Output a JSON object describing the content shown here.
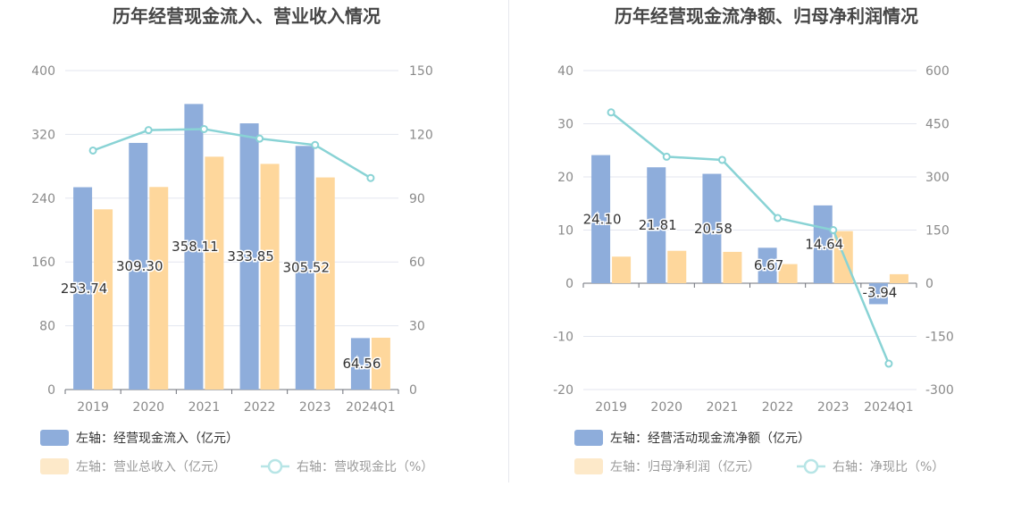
{
  "chart_data": [
    {
      "type": "bar",
      "title": "历年经营现金流入、营业收入情况",
      "categories": [
        "2019",
        "2020",
        "2021",
        "2022",
        "2023",
        "2024Q1"
      ],
      "y_left": {
        "min": 0,
        "max": 400,
        "ticks": [
          "0",
          "80",
          "160",
          "240",
          "320",
          "400"
        ]
      },
      "y_right": {
        "min": 0,
        "max": 150,
        "ticks": [
          "0",
          "30",
          "60",
          "90",
          "120",
          "150"
        ]
      },
      "series": [
        {
          "name": "左轴：经营现金流入（亿元）",
          "type": "bar",
          "axis": "left",
          "color": "#8eaddb",
          "values": [
            253.74,
            309.3,
            358.11,
            333.85,
            305.52,
            64.56
          ],
          "labels": [
            "253.74",
            "309.30",
            "358.11",
            "333.85",
            "305.52",
            "64.56"
          ]
        },
        {
          "name": "左轴：营业总收入（亿元）",
          "type": "bar",
          "axis": "left",
          "color": "#fed79c",
          "values": [
            226,
            254,
            292,
            283,
            266,
            65
          ]
        },
        {
          "name": "右轴：营收现金比（%）",
          "type": "line",
          "axis": "right",
          "color": "#89d3d5",
          "values": [
            112.4,
            122,
            122.5,
            118,
            115,
            99.5
          ]
        }
      ]
    },
    {
      "type": "bar",
      "title": "历年经营现金流净额、归母净利润情况",
      "categories": [
        "2019",
        "2020",
        "2021",
        "2022",
        "2023",
        "2024Q1"
      ],
      "y_left": {
        "min": -20,
        "max": 40,
        "ticks": [
          "-20",
          "-10",
          "0",
          "10",
          "20",
          "30",
          "40"
        ]
      },
      "y_right": {
        "min": -300,
        "max": 600,
        "ticks": [
          "-300",
          "-150",
          "0",
          "150",
          "300",
          "450",
          "600"
        ]
      },
      "series": [
        {
          "name": "左轴：经营活动现金流净额（亿元）",
          "type": "bar",
          "axis": "left",
          "color": "#8eaddb",
          "values": [
            24.1,
            21.81,
            20.58,
            6.67,
            14.64,
            -3.94
          ],
          "labels": [
            "24.10",
            "21.81",
            "20.58",
            "6.67",
            "14.64",
            "-3.94"
          ]
        },
        {
          "name": "左轴：归母净利润（亿元）",
          "type": "bar",
          "axis": "left",
          "color": "#fed79c",
          "values": [
            5.0,
            6.1,
            5.9,
            3.6,
            9.8,
            1.7
          ]
        },
        {
          "name": "右轴：净现比（%）",
          "type": "line",
          "axis": "right",
          "color": "#89d3d5",
          "values": [
            482,
            357,
            348,
            184,
            150,
            -227
          ]
        }
      ]
    }
  ]
}
